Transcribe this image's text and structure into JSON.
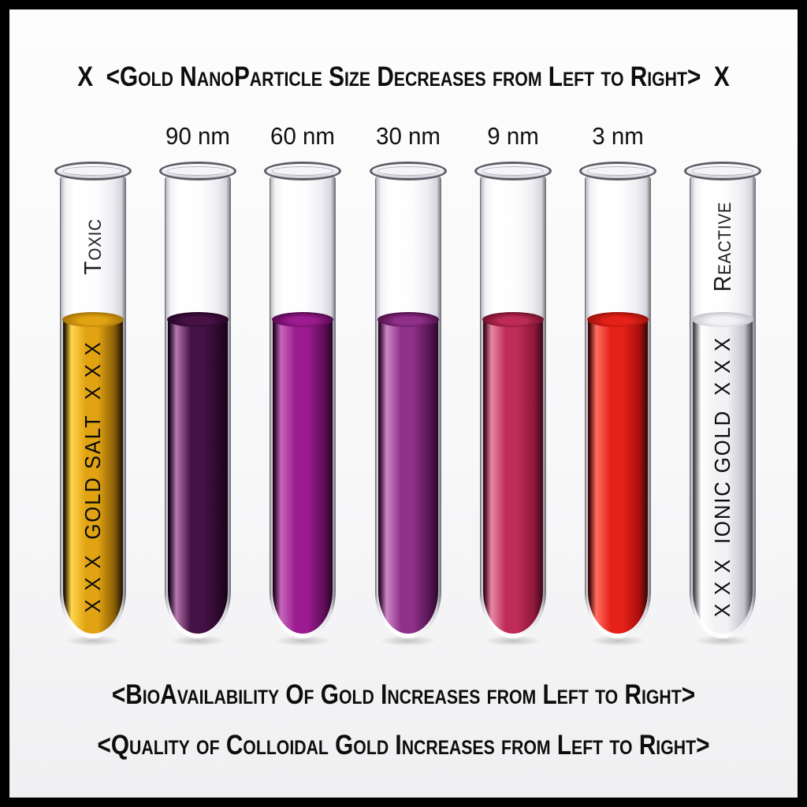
{
  "title": "X  <Gold NanoParticle Size Decreases from Left to Right>  X",
  "tubes": [
    {
      "name": "gold-salt",
      "size_label": "",
      "neck_label": "Toxic",
      "body_label": "X X X  GOLD SALT  X X X",
      "colors": {
        "edge": "#241703",
        "highlight": "#FFD64E",
        "main": "#E2A312",
        "deep": "#8A5E07",
        "meniscus": "#A67409"
      }
    },
    {
      "name": "90nm",
      "size_label": "90 nm",
      "neck_label": "",
      "body_label": "",
      "colors": {
        "edge": "#180419",
        "highlight": "#B577AF",
        "main": "#461245",
        "deep": "#2A082B",
        "meniscus": "#250526"
      }
    },
    {
      "name": "60nm",
      "size_label": "60 nm",
      "neck_label": "",
      "body_label": "",
      "colors": {
        "edge": "#2B0527",
        "highlight": "#C867BD",
        "main": "#9C1B90",
        "deep": "#5E0D57",
        "meniscus": "#560A4F"
      }
    },
    {
      "name": "30nm",
      "size_label": "30 nm",
      "neck_label": "",
      "body_label": "",
      "colors": {
        "edge": "#2E0A2C",
        "highlight": "#CC86C7",
        "main": "#8F3089",
        "deep": "#571453",
        "meniscus": "#4E1048"
      }
    },
    {
      "name": "9nm",
      "size_label": "9 nm",
      "neck_label": "",
      "body_label": "",
      "colors": {
        "edge": "#400A1B",
        "highlight": "#E887A6",
        "main": "#BE2B57",
        "deep": "#8C1737",
        "meniscus": "#701129"
      }
    },
    {
      "name": "3nm",
      "size_label": "3 nm",
      "neck_label": "",
      "body_label": "",
      "colors": {
        "edge": "#3C0706",
        "highlight": "#FF6F5F",
        "main": "#E62119",
        "deep": "#A90F0B",
        "meniscus": "#9E100C"
      }
    },
    {
      "name": "ionic-gold",
      "size_label": "",
      "neck_label": "Reactive",
      "body_label": "X X X  IONIC GOLD  X X X",
      "colors": {
        "edge": "#4A4A52",
        "highlight": "#FFFFFF",
        "main": "#F2F2F5",
        "deep": "#C2C2CA",
        "meniscus": "#C6C6CE"
      }
    }
  ],
  "footer": {
    "line1": "<BioAvailability Of Gold Increases from Left to Right>",
    "line2": "<Quality of Colloidal Gold Increases from Left to Right>"
  }
}
